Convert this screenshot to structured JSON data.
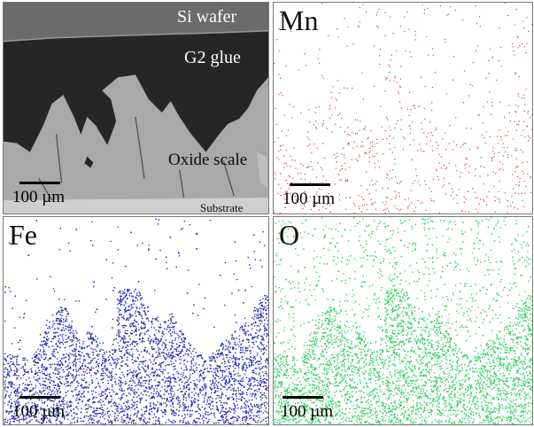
{
  "panels": {
    "sem": {
      "layers": {
        "wafer": "Si wafer",
        "glue": "G2 glue",
        "scale": "Oxide scale",
        "substrate": "Substrate"
      },
      "scale_bar": "100 µm",
      "colors": {
        "background": "#262626",
        "wafer": "#6b6b6b",
        "oxide": "#a9a9a9",
        "substrate": "#cfcfcf"
      }
    },
    "mn": {
      "element": "Mn",
      "scale_bar": "100 µm",
      "dot_color": "#d23c3c"
    },
    "fe": {
      "element": "Fe",
      "scale_bar": "100 µm",
      "dot_color": "#1f2db4"
    },
    "o": {
      "element": "O",
      "scale_bar": "100 µm",
      "dot_color": "#2ecf5c"
    }
  }
}
